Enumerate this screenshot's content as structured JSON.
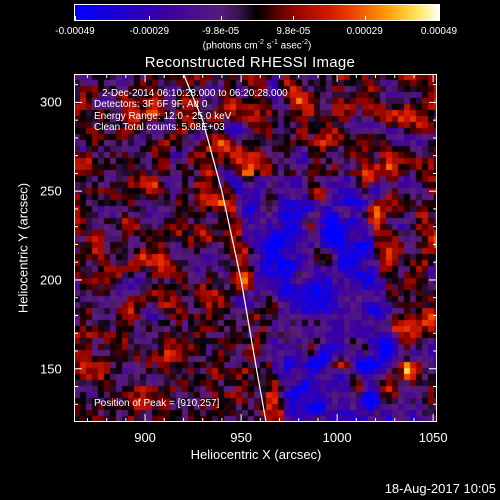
{
  "colorbar": {
    "ticks": [
      "-0.00049",
      "-0.00029",
      "-9.8e-05",
      "9.8e-05",
      "0.00029",
      "0.00049"
    ],
    "unit_prefix": "(photons cm",
    "unit_exp1": "-2",
    "unit_mid": " s",
    "unit_exp2": "-1",
    "unit_suffix": " asec",
    "unit_exp3": "-2",
    "unit_close": ")"
  },
  "chart_data": {
    "type": "heatmap",
    "title": "Reconstructed RHESSI Image",
    "xlabel": "Heliocentric X (arcsec)",
    "ylabel": "Heliocentric Y (arcsec)",
    "xlim": [
      863,
      1052
    ],
    "ylim": [
      120,
      316
    ],
    "xticks": [
      900,
      950,
      1000,
      1050
    ],
    "yticks": [
      150,
      200,
      250,
      300
    ],
    "clim": [
      -0.00049,
      0.00049
    ],
    "colormap": "blue-purple-red-orange-yellow-white",
    "limb_curve": {
      "x": [
        920,
        930,
        940,
        950,
        958,
        963
      ],
      "y": [
        316,
        290,
        250,
        200,
        150,
        120
      ]
    },
    "peak_position": [
      910,
      257
    ],
    "annotations": {
      "time_range": "2-Dec-2014 06:10:28.000 to 06:20:28.000",
      "detectors": "Detectors: 3F 6F 9F, Att 0",
      "energy": "Energy Range: 12.0 - 25.0 keV",
      "clean": "Clean   Total counts: 5.08E+03",
      "peak": "Position of Peak = [910,257]"
    }
  },
  "timestamp": "18-Aug-2017 10:05"
}
